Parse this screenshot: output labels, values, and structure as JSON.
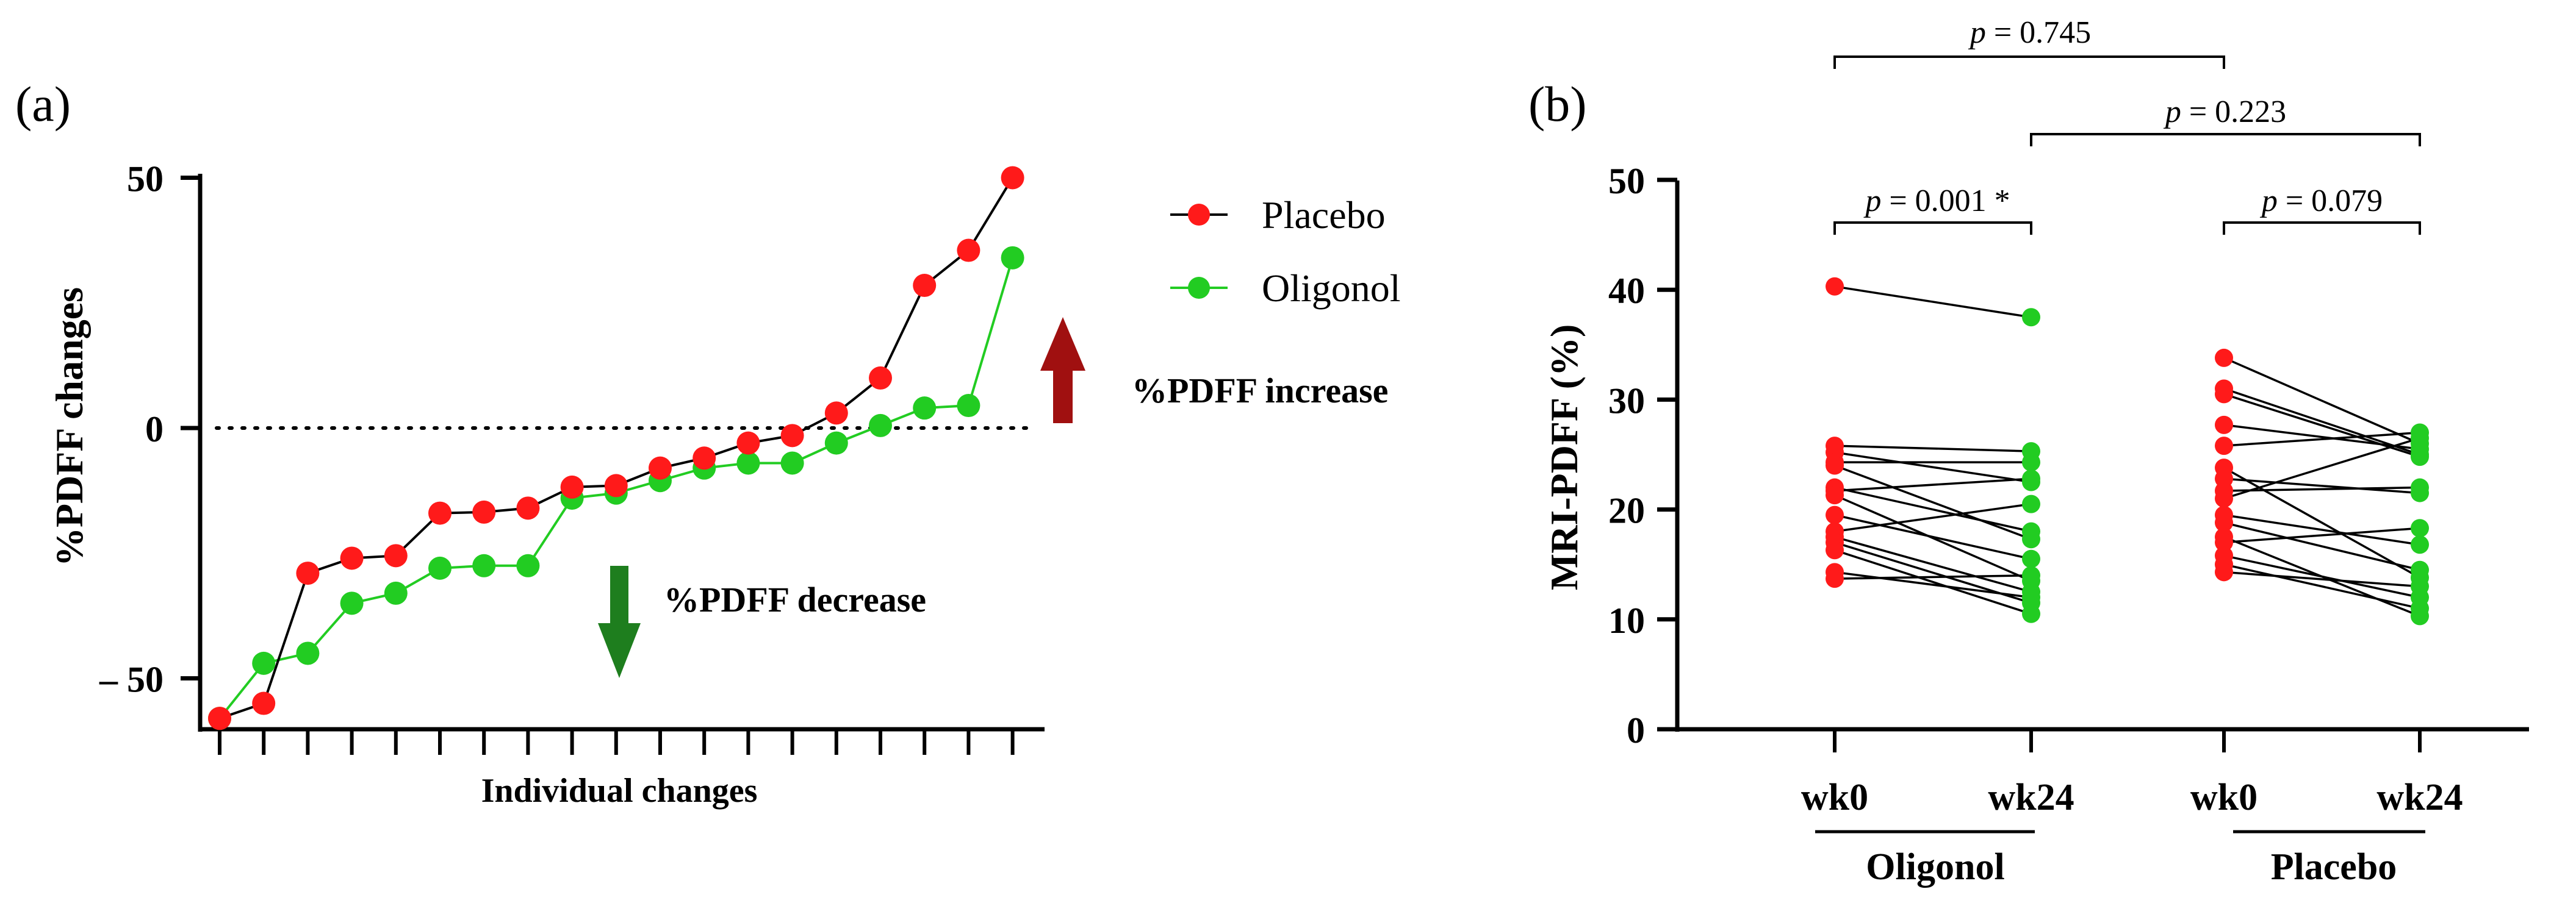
{
  "chart_data": [
    {
      "panel_label": "(a)",
      "type": "line",
      "xlabel": "Individual changes",
      "ylabel": "%PDFF changes",
      "yticks": [
        "50",
        "0",
        "– 50"
      ],
      "ytick_values": [
        50,
        0,
        -50
      ],
      "ylim": [
        -60,
        52
      ],
      "reference_line": 0,
      "n_ticks": 19,
      "legend": [
        "Placebo",
        "Oligonol"
      ],
      "legend_position": "top-right",
      "series": [
        {
          "name": "Placebo",
          "color": "#ff1a1a",
          "line_color": "#000000",
          "values": [
            -58,
            -55,
            -29,
            -26,
            -25.5,
            -17,
            -16.8,
            -16,
            -11.8,
            -11.5,
            -8,
            -6,
            -3,
            -1.5,
            3,
            10,
            28.5,
            35.5,
            50
          ]
        },
        {
          "name": "Oligonol",
          "color": "#22cc22",
          "line_color": "#22cc22",
          "values": [
            -58,
            -47,
            -45,
            -35,
            -33,
            -28,
            -27.5,
            -27.5,
            -14,
            -13,
            -10.5,
            -8,
            -7,
            -7,
            -3,
            0.5,
            4,
            4.5,
            34
          ]
        }
      ],
      "annotations": [
        {
          "text": "%PDFF increase",
          "arrow": "up",
          "color": "#a01010"
        },
        {
          "text": "%PDFF decrease",
          "arrow": "down",
          "color": "#1e7e1e"
        }
      ]
    },
    {
      "panel_label": "(b)",
      "type": "scatter",
      "ylabel": "MRI-PDFF (%)",
      "ylim": [
        0,
        50
      ],
      "yticks": [
        "0",
        "10",
        "20",
        "30",
        "40",
        "50"
      ],
      "ytick_values": [
        0,
        10,
        20,
        30,
        40,
        50
      ],
      "x_categories": [
        "wk0",
        "wk24",
        "wk0",
        "wk24"
      ],
      "groups": [
        "Oligonol",
        "Placebo"
      ],
      "series": [
        {
          "name": "Oligonol",
          "wk0_color": "#ff1a1a",
          "wk24_color": "#22cc22",
          "pairs": [
            [
              40.3,
              37.5
            ],
            [
              25.8,
              25.3
            ],
            [
              25.2,
              22.5
            ],
            [
              24.3,
              24.3
            ],
            [
              24.0,
              17.3
            ],
            [
              22.0,
              18.0
            ],
            [
              21.7,
              22.8
            ],
            [
              21.3,
              13.5
            ],
            [
              19.5,
              15.5
            ],
            [
              18.0,
              20.5
            ],
            [
              17.5,
              12.5
            ],
            [
              17.0,
              11.5
            ],
            [
              16.3,
              10.5
            ],
            [
              14.3,
              12.0
            ],
            [
              13.7,
              14.0
            ]
          ]
        },
        {
          "name": "Placebo",
          "wk0_color": "#ff1a1a",
          "wk24_color": "#22cc22",
          "pairs": [
            [
              33.8,
              26.0
            ],
            [
              31.0,
              25.0
            ],
            [
              30.5,
              24.8
            ],
            [
              27.7,
              25.5
            ],
            [
              25.8,
              27.0
            ],
            [
              23.8,
              13.8
            ],
            [
              22.8,
              21.5
            ],
            [
              21.7,
              22.0
            ],
            [
              21.0,
              26.5
            ],
            [
              19.5,
              16.8
            ],
            [
              18.8,
              14.5
            ],
            [
              17.5,
              10.3
            ],
            [
              17.0,
              18.3
            ],
            [
              15.8,
              12.0
            ],
            [
              15.0,
              11.0
            ],
            [
              14.3,
              13.0
            ]
          ]
        }
      ],
      "comparisons": [
        {
          "label": "p = 0.745",
          "p": "p",
          "value": " = 0.745"
        },
        {
          "label": "p = 0.223",
          "p": "p",
          "value": " = 0.223"
        },
        {
          "label": "p = 0.001 *",
          "p": "p",
          "value": " = 0.001 *"
        },
        {
          "label": "p = 0.079",
          "p": "p",
          "value": " = 0.079"
        }
      ]
    }
  ]
}
